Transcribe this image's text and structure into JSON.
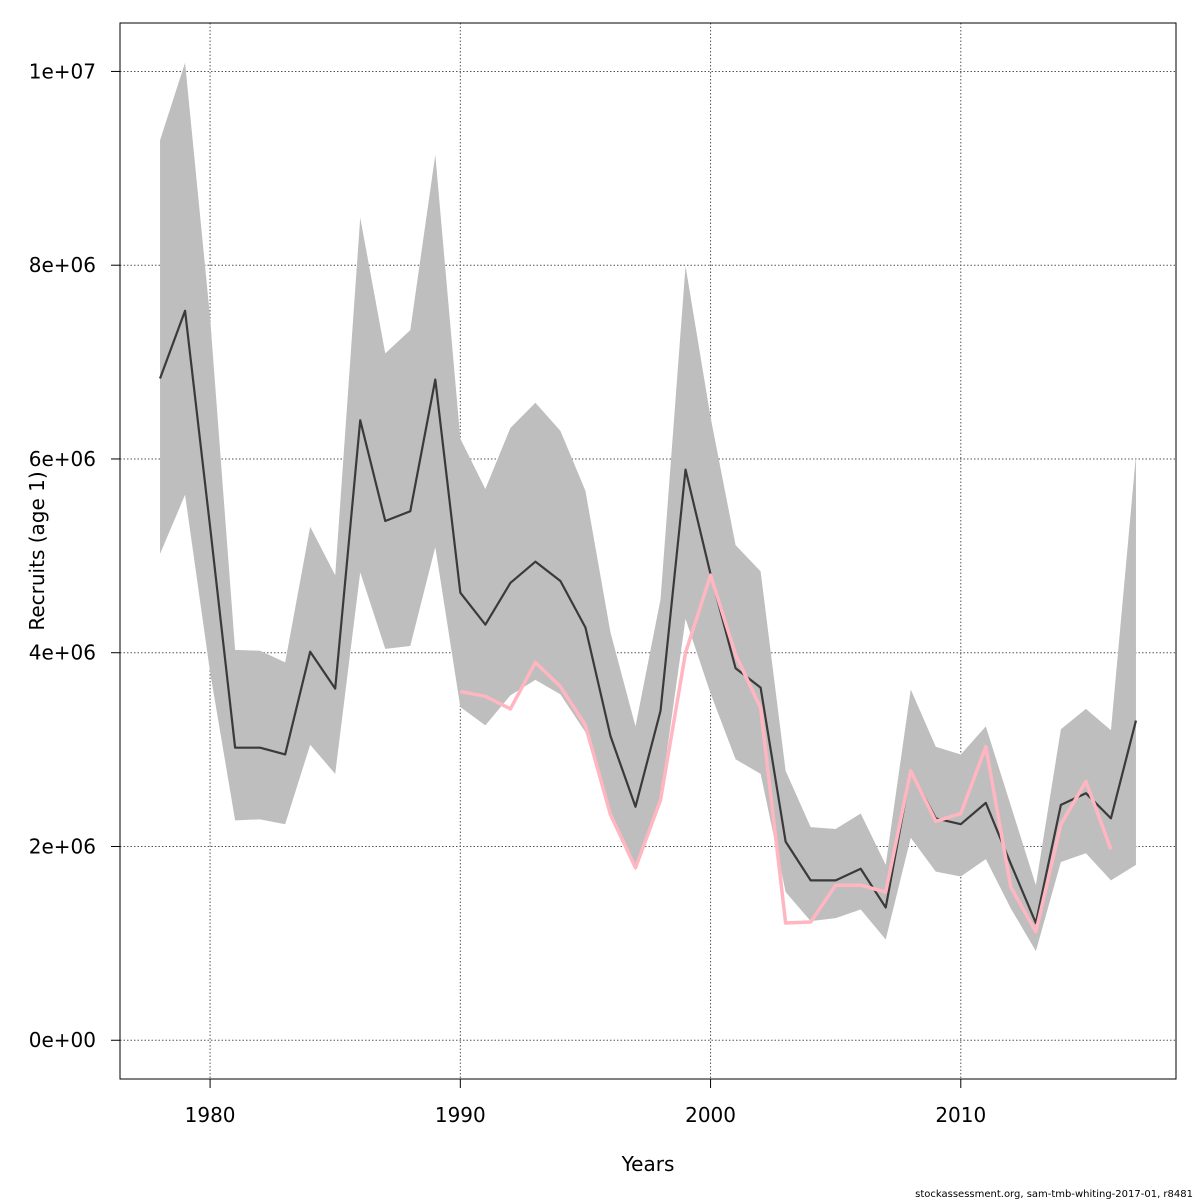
{
  "chart_data": {
    "type": "line",
    "xlabel": "Years",
    "ylabel": "Recruits (age 1)",
    "xlim": [
      1976.4,
      2018.6
    ],
    "ylim": [
      -400000,
      10500000
    ],
    "x_ticks": [
      {
        "value": 1980,
        "label": "1980"
      },
      {
        "value": 1990,
        "label": "1990"
      },
      {
        "value": 2000,
        "label": "2000"
      },
      {
        "value": 2010,
        "label": "2010"
      }
    ],
    "y_ticks": [
      {
        "value": 0,
        "label": "0e+00"
      },
      {
        "value": 2000000,
        "label": "2e+06"
      },
      {
        "value": 4000000,
        "label": "4e+06"
      },
      {
        "value": 6000000,
        "label": "6e+06"
      },
      {
        "value": 8000000,
        "label": "8e+06"
      },
      {
        "value": 10000000,
        "label": "1e+07"
      }
    ],
    "grid": true,
    "colors": {
      "band": "#bebebe",
      "estimate": "#3a3a3a",
      "overlay": "#ffb6c1",
      "grid": "#555555"
    },
    "x": [
      1978,
      1979,
      1980,
      1981,
      1982,
      1983,
      1984,
      1985,
      1986,
      1987,
      1988,
      1989,
      1990,
      1991,
      1992,
      1993,
      1994,
      1995,
      1996,
      1997,
      1998,
      1999,
      2000,
      2001,
      2002,
      2003,
      2004,
      2005,
      2006,
      2007,
      2008,
      2009,
      2010,
      2011,
      2012,
      2013,
      2014,
      2015,
      2016,
      2017
    ],
    "series": [
      {
        "values": [
          6830000,
          7530000,
          5300000,
          3020000,
          3020000,
          2950000,
          4010000,
          3630000,
          6400000,
          5360000,
          5460000,
          6820000,
          4620000,
          4290000,
          4720000,
          4940000,
          4740000,
          4260000,
          3140000,
          2410000,
          3400000,
          5890000,
          4810000,
          3840000,
          3640000,
          2050000,
          1650000,
          1650000,
          1770000,
          1370000,
          2780000,
          2290000,
          2230000,
          2450000,
          1820000,
          1210000,
          2430000,
          2550000,
          2290000,
          3300000
        ],
        "lower": [
          5020000,
          5630000,
          3800000,
          2270000,
          2280000,
          2230000,
          3050000,
          2750000,
          4830000,
          4040000,
          4070000,
          5090000,
          3440000,
          3250000,
          3560000,
          3720000,
          3570000,
          3180000,
          2330000,
          1800000,
          2510000,
          4350000,
          3580000,
          2900000,
          2750000,
          1530000,
          1230000,
          1260000,
          1350000,
          1040000,
          2090000,
          1740000,
          1690000,
          1870000,
          1360000,
          920000,
          1840000,
          1930000,
          1650000,
          1810000
        ],
        "upper": [
          9290000,
          10090000,
          7460000,
          4030000,
          4020000,
          3900000,
          5300000,
          4800000,
          8490000,
          7090000,
          7330000,
          9140000,
          6210000,
          5690000,
          6320000,
          6580000,
          6290000,
          5670000,
          4210000,
          3240000,
          4550000,
          7990000,
          6430000,
          5110000,
          4840000,
          2780000,
          2200000,
          2180000,
          2340000,
          1810000,
          3620000,
          3030000,
          2950000,
          3240000,
          2420000,
          1600000,
          3210000,
          3420000,
          3200000,
          6040000
        ]
      },
      {
        "x": [
          1990,
          1991,
          1992,
          1993,
          1994,
          1995,
          1996,
          1997,
          1998,
          1999,
          2000,
          2001,
          2002,
          2003,
          2004,
          2005,
          2006,
          2007,
          2008,
          2009,
          2010,
          2011,
          2012,
          2013,
          2014,
          2015,
          2016
        ],
        "values": [
          3600000,
          3550000,
          3420000,
          3900000,
          3650000,
          3250000,
          2330000,
          1780000,
          2480000,
          4000000,
          4800000,
          3980000,
          3430000,
          1210000,
          1220000,
          1600000,
          1600000,
          1530000,
          2780000,
          2260000,
          2340000,
          3030000,
          1580000,
          1120000,
          2230000,
          2670000,
          1970000
        ]
      }
    ]
  },
  "footer": {
    "credit": "stockassessment.org, sam-tmb-whiting-2017-01, r8481"
  }
}
